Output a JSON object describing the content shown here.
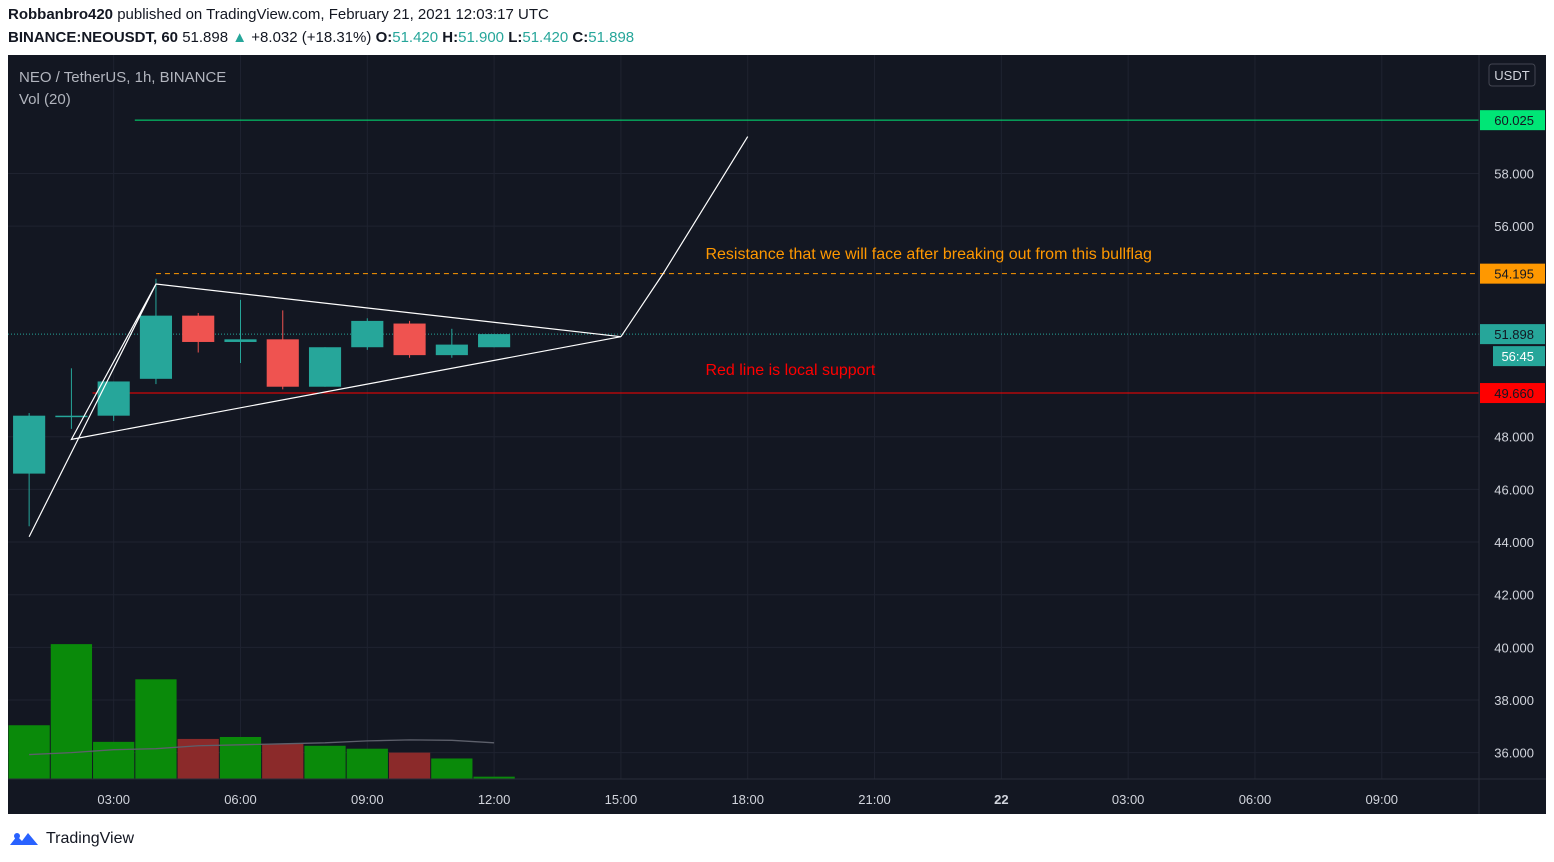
{
  "header": {
    "author": "Robbanbro420",
    "published_text": "published on TradingView.com, February 21, 2021 12:03:17 UTC",
    "symbol_interval": "BINANCE:NEOUSDT, 60",
    "last_price": "51.898",
    "change_arrow": "▲",
    "change": "+8.032 (+18.31%)",
    "o_label": "O:",
    "o_value": "51.420",
    "h_label": "H:",
    "h_value": "51.900",
    "l_label": "L:",
    "l_value": "51.420",
    "c_label": "C:",
    "c_value": "51.898"
  },
  "legend": {
    "title": "NEO / TetherUS, 1h, BINANCE",
    "volume_label": "Vol (20)"
  },
  "footer": {
    "brand": "TradingView",
    "logo_icon": "tradingview-logo-icon"
  },
  "colors": {
    "panel_bg": "#131722",
    "grid": "#1f2330",
    "up": "#26a69a",
    "down": "#ef5350",
    "vol_up": "#0a8a0a",
    "vol_down": "#8b2a2a",
    "axis_text": "#d1d4dc",
    "green_line": "#00e676",
    "resistance": "#ff9800",
    "support": "#ff0000",
    "drawing": "#ffffff",
    "last_price": "#26a69a"
  },
  "chart_data": {
    "type": "candlestick",
    "title": "NEO / TetherUS, 1h, BINANCE",
    "y_axis_unit": "USDT",
    "ylim": [
      35.0,
      62.5
    ],
    "y_ticks": [
      36,
      38,
      40,
      42,
      44,
      46,
      48,
      56,
      58
    ],
    "y_tick_labels": [
      "36.000",
      "38.000",
      "40.000",
      "42.000",
      "44.000",
      "46.000",
      "48.000",
      "56.000",
      "58.000"
    ],
    "x_slot_range": [
      -0.5,
      34.3
    ],
    "x_ticks": [
      {
        "slot": 2,
        "label": "03:00",
        "bold": false
      },
      {
        "slot": 5,
        "label": "06:00",
        "bold": false
      },
      {
        "slot": 8,
        "label": "09:00",
        "bold": false
      },
      {
        "slot": 11,
        "label": "12:00",
        "bold": false
      },
      {
        "slot": 14,
        "label": "15:00",
        "bold": false
      },
      {
        "slot": 17,
        "label": "18:00",
        "bold": false
      },
      {
        "slot": 20,
        "label": "21:00",
        "bold": false
      },
      {
        "slot": 23,
        "label": "22",
        "bold": true
      },
      {
        "slot": 26,
        "label": "03:00",
        "bold": false
      },
      {
        "slot": 29,
        "label": "06:00",
        "bold": false
      },
      {
        "slot": 32,
        "label": "09:00",
        "bold": false
      }
    ],
    "candles": [
      {
        "slot": 0,
        "o": 46.6,
        "h": 48.9,
        "l": 44.6,
        "c": 48.8
      },
      {
        "slot": 1,
        "o": 48.8,
        "h": 50.6,
        "l": 48.3,
        "c": 48.8
      },
      {
        "slot": 2,
        "o": 48.8,
        "h": 50.1,
        "l": 48.6,
        "c": 50.1
      },
      {
        "slot": 3,
        "o": 50.2,
        "h": 54.0,
        "l": 50.0,
        "c": 52.6
      },
      {
        "slot": 4,
        "o": 52.6,
        "h": 52.7,
        "l": 51.2,
        "c": 51.6
      },
      {
        "slot": 5,
        "o": 51.6,
        "h": 53.2,
        "l": 50.8,
        "c": 51.7
      },
      {
        "slot": 6,
        "o": 51.7,
        "h": 52.8,
        "l": 49.8,
        "c": 49.9
      },
      {
        "slot": 7,
        "o": 49.9,
        "h": 51.4,
        "l": 49.9,
        "c": 51.4
      },
      {
        "slot": 8,
        "o": 51.4,
        "h": 52.5,
        "l": 51.3,
        "c": 52.4
      },
      {
        "slot": 9,
        "o": 52.3,
        "h": 52.4,
        "l": 51.0,
        "c": 51.1
      },
      {
        "slot": 10,
        "o": 51.1,
        "h": 52.1,
        "l": 51.0,
        "c": 51.5
      },
      {
        "slot": 11,
        "o": 51.4,
        "h": 51.9,
        "l": 51.4,
        "c": 51.9
      }
    ],
    "volume": [
      {
        "slot": 0,
        "v": 27.5,
        "up": true
      },
      {
        "slot": 1,
        "v": 69.0,
        "up": true
      },
      {
        "slot": 2,
        "v": 19.0,
        "up": true
      },
      {
        "slot": 3,
        "v": 51.0,
        "up": true
      },
      {
        "slot": 4,
        "v": 20.5,
        "up": false
      },
      {
        "slot": 5,
        "v": 21.5,
        "up": true
      },
      {
        "slot": 6,
        "v": 18.0,
        "up": false
      },
      {
        "slot": 7,
        "v": 17.0,
        "up": true
      },
      {
        "slot": 8,
        "v": 15.5,
        "up": true
      },
      {
        "slot": 9,
        "v": 13.5,
        "up": false
      },
      {
        "slot": 10,
        "v": 10.5,
        "up": true
      },
      {
        "slot": 11,
        "v": 1.2,
        "up": true
      }
    ],
    "volume_ma": [
      12.5,
      13.5,
      15.0,
      15.5,
      17.0,
      17.5,
      18.0,
      18.5,
      19.5,
      20.0,
      19.8,
      18.5
    ],
    "volume_max": 100,
    "horizontal_levels": [
      {
        "price": 60.025,
        "label": "60.025",
        "style": "solid",
        "color_key": "green_line",
        "from_slot": 2.5
      },
      {
        "price": 54.195,
        "label": "54.195",
        "style": "dashed",
        "color_key": "resistance",
        "from_slot": 3
      },
      {
        "price": 49.66,
        "label": "49.660",
        "style": "solid",
        "color_key": "support",
        "from_slot": 1.5
      }
    ],
    "last_price": {
      "price": 51.898,
      "label": "51.898",
      "countdown": "56:45"
    },
    "annotations": [
      {
        "text": "Resistance that we will face after breaking out from this bullflag",
        "slot": 16,
        "price": 54.75,
        "color_key": "resistance"
      },
      {
        "text": "Red line is local support",
        "slot": 16,
        "price": 50.35,
        "color_key": "support"
      }
    ],
    "drawings": [
      {
        "points": [
          [
            0,
            44.2
          ],
          [
            3,
            53.8
          ],
          [
            14,
            51.8
          ],
          [
            1,
            47.9
          ],
          [
            3,
            53.8
          ]
        ]
      },
      {
        "points": [
          [
            14,
            51.8
          ],
          [
            15,
            54.2
          ],
          [
            17,
            59.4
          ]
        ]
      }
    ]
  }
}
